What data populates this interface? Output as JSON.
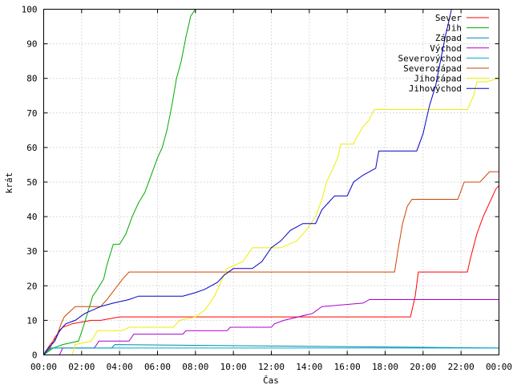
{
  "chart_data": {
    "type": "line",
    "title": "",
    "xlabel": "Čas",
    "ylabel": "krát",
    "xlim": [
      "00:00",
      "24:00"
    ],
    "ylim": [
      0,
      100
    ],
    "grid": true,
    "legend_position": "top-right",
    "x_ticks": [
      "00:00",
      "02:00",
      "04:00",
      "06:00",
      "08:00",
      "10:00",
      "12:00",
      "14:00",
      "16:00",
      "18:00",
      "20:00",
      "22:00",
      "00:00"
    ],
    "y_ticks": [
      0,
      10,
      20,
      30,
      40,
      50,
      60,
      70,
      80,
      90,
      100
    ],
    "series": [
      {
        "name": "Sever",
        "color": "#ff0000",
        "points": [
          [
            "00:00",
            0
          ],
          [
            "00:20",
            2
          ],
          [
            "00:35",
            5
          ],
          [
            "01:00",
            8
          ],
          [
            "01:30",
            9
          ],
          [
            "02:30",
            10
          ],
          [
            "03:00",
            10
          ],
          [
            "04:00",
            11
          ],
          [
            "06:00",
            11
          ],
          [
            "10:00",
            11
          ],
          [
            "14:00",
            11
          ],
          [
            "18:00",
            11
          ],
          [
            "19:20",
            11
          ],
          [
            "19:35",
            17
          ],
          [
            "19:45",
            24
          ],
          [
            "22:00",
            24
          ],
          [
            "22:20",
            24
          ],
          [
            "22:30",
            28
          ],
          [
            "22:50",
            35
          ],
          [
            "23:10",
            40
          ],
          [
            "23:30",
            44
          ],
          [
            "23:50",
            48
          ],
          [
            "24:00",
            49
          ]
        ]
      },
      {
        "name": "Jih",
        "color": "#00aa00",
        "points": [
          [
            "00:00",
            0
          ],
          [
            "00:30",
            2
          ],
          [
            "01:00",
            3
          ],
          [
            "01:50",
            4
          ],
          [
            "02:05",
            8
          ],
          [
            "02:25",
            14
          ],
          [
            "02:35",
            17
          ],
          [
            "02:50",
            19
          ],
          [
            "03:10",
            22
          ],
          [
            "03:20",
            26
          ],
          [
            "03:30",
            29
          ],
          [
            "03:40",
            32
          ],
          [
            "04:00",
            32
          ],
          [
            "04:20",
            35
          ],
          [
            "04:40",
            40
          ],
          [
            "05:00",
            44
          ],
          [
            "05:20",
            47
          ],
          [
            "05:40",
            52
          ],
          [
            "06:00",
            57
          ],
          [
            "06:15",
            60
          ],
          [
            "06:30",
            65
          ],
          [
            "06:45",
            72
          ],
          [
            "07:00",
            80
          ],
          [
            "07:15",
            85
          ],
          [
            "07:30",
            92
          ],
          [
            "07:45",
            98
          ],
          [
            "08:00",
            100
          ]
        ]
      },
      {
        "name": "Západ",
        "color": "#0088aa",
        "points": [
          [
            "00:00",
            0
          ],
          [
            "00:10",
            1
          ],
          [
            "00:25",
            2
          ],
          [
            "03:20",
            2
          ],
          [
            "03:35",
            2
          ],
          [
            "03:45",
            3
          ],
          [
            "24:00",
            2
          ]
        ]
      },
      {
        "name": "Východ",
        "color": "#aa00cc",
        "points": [
          [
            "00:00",
            0
          ],
          [
            "00:50",
            0
          ],
          [
            "01:00",
            2
          ],
          [
            "02:40",
            2
          ],
          [
            "02:55",
            4
          ],
          [
            "04:30",
            4
          ],
          [
            "04:45",
            6
          ],
          [
            "07:20",
            6
          ],
          [
            "07:30",
            7
          ],
          [
            "09:40",
            7
          ],
          [
            "09:50",
            8
          ],
          [
            "12:00",
            8
          ],
          [
            "12:10",
            9
          ],
          [
            "12:40",
            10
          ],
          [
            "14:10",
            12
          ],
          [
            "14:40",
            14
          ],
          [
            "16:50",
            15
          ],
          [
            "17:10",
            16
          ],
          [
            "24:00",
            16
          ]
        ]
      },
      {
        "name": "Severovýchod",
        "color": "#00aacc",
        "points": [
          [
            "00:00",
            0
          ],
          [
            "00:05",
            1
          ],
          [
            "00:15",
            2
          ],
          [
            "24:00",
            2
          ]
        ]
      },
      {
        "name": "Severozápad",
        "color": "#cc4400",
        "points": [
          [
            "00:00",
            0
          ],
          [
            "00:20",
            3
          ],
          [
            "00:40",
            5
          ],
          [
            "00:55",
            9
          ],
          [
            "01:05",
            11
          ],
          [
            "01:40",
            14
          ],
          [
            "03:00",
            14
          ],
          [
            "03:20",
            16
          ],
          [
            "03:45",
            19
          ],
          [
            "04:10",
            22
          ],
          [
            "04:30",
            24
          ],
          [
            "18:30",
            24
          ],
          [
            "18:40",
            30
          ],
          [
            "18:55",
            38
          ],
          [
            "19:10",
            43
          ],
          [
            "19:25",
            45
          ],
          [
            "21:50",
            45
          ],
          [
            "22:10",
            50
          ],
          [
            "23:00",
            50
          ],
          [
            "23:10",
            51
          ],
          [
            "23:30",
            53
          ],
          [
            "24:00",
            53
          ]
        ]
      },
      {
        "name": "Jihozápad",
        "color": "#eeee00",
        "points": [
          [
            "00:00",
            0
          ],
          [
            "01:30",
            0
          ],
          [
            "01:40",
            3
          ],
          [
            "02:30",
            4
          ],
          [
            "02:50",
            7
          ],
          [
            "04:10",
            7
          ],
          [
            "04:30",
            8
          ],
          [
            "06:50",
            8
          ],
          [
            "07:10",
            10
          ],
          [
            "08:00",
            11
          ],
          [
            "08:30",
            13
          ],
          [
            "09:00",
            17
          ],
          [
            "09:20",
            21
          ],
          [
            "09:40",
            25
          ],
          [
            "10:30",
            27
          ],
          [
            "11:00",
            31
          ],
          [
            "12:30",
            31
          ],
          [
            "13:20",
            33
          ],
          [
            "13:50",
            36
          ],
          [
            "14:20",
            40
          ],
          [
            "14:40",
            45
          ],
          [
            "14:55",
            50
          ],
          [
            "15:10",
            53
          ],
          [
            "15:30",
            57
          ],
          [
            "15:40",
            61
          ],
          [
            "16:20",
            61
          ],
          [
            "16:30",
            63
          ],
          [
            "16:50",
            66
          ],
          [
            "17:10",
            68
          ],
          [
            "17:25",
            71
          ],
          [
            "22:20",
            71
          ],
          [
            "22:40",
            75
          ],
          [
            "22:50",
            79
          ],
          [
            "23:20",
            79
          ],
          [
            "24:00",
            80
          ]
        ]
      },
      {
        "name": "Jihovýchod",
        "color": "#0000cc",
        "points": [
          [
            "00:00",
            0
          ],
          [
            "00:15",
            2
          ],
          [
            "00:35",
            4
          ],
          [
            "00:50",
            7
          ],
          [
            "01:10",
            9
          ],
          [
            "01:40",
            10
          ],
          [
            "02:10",
            12
          ],
          [
            "03:00",
            14
          ],
          [
            "03:40",
            15
          ],
          [
            "04:30",
            16
          ],
          [
            "05:00",
            17
          ],
          [
            "07:20",
            17
          ],
          [
            "08:00",
            18
          ],
          [
            "08:30",
            19
          ],
          [
            "09:10",
            21
          ],
          [
            "09:30",
            23
          ],
          [
            "10:00",
            25
          ],
          [
            "11:00",
            25
          ],
          [
            "11:30",
            27
          ],
          [
            "12:00",
            31
          ],
          [
            "12:30",
            33
          ],
          [
            "13:00",
            36
          ],
          [
            "13:40",
            38
          ],
          [
            "14:20",
            38
          ],
          [
            "14:40",
            42
          ],
          [
            "15:00",
            44
          ],
          [
            "15:20",
            46
          ],
          [
            "16:00",
            46
          ],
          [
            "16:20",
            50
          ],
          [
            "16:50",
            52
          ],
          [
            "17:30",
            54
          ],
          [
            "17:40",
            59
          ],
          [
            "19:40",
            59
          ],
          [
            "20:00",
            64
          ],
          [
            "20:20",
            72
          ],
          [
            "20:40",
            78
          ],
          [
            "20:55",
            85
          ],
          [
            "21:10",
            92
          ],
          [
            "21:20",
            96
          ],
          [
            "21:30",
            100
          ]
        ]
      }
    ]
  }
}
